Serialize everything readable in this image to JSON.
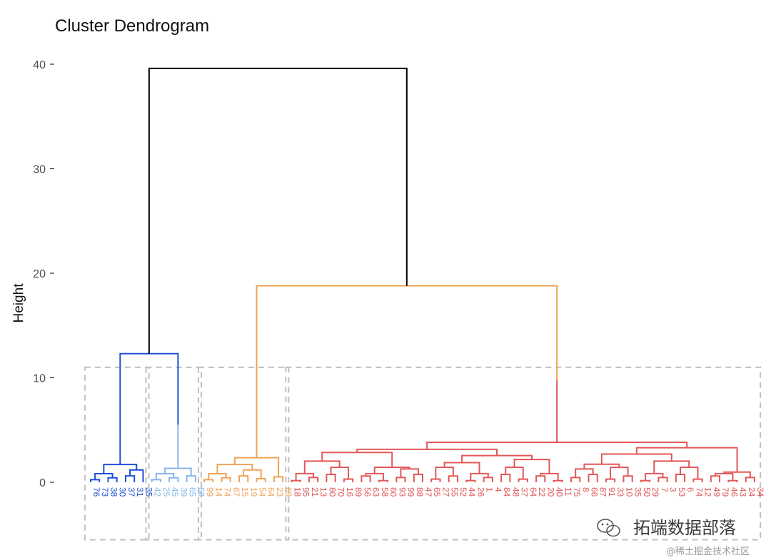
{
  "chart_data": {
    "type": "dendrogram",
    "title": "Cluster Dendrogram",
    "xlabel": "",
    "ylabel": "Height",
    "ylim": [
      -5.5,
      40
    ],
    "yticks": [
      0,
      10,
      20,
      30,
      40
    ],
    "grid": false,
    "rect_height": 11,
    "clusters": [
      {
        "id": 1,
        "color": "#1f4fd6",
        "leaves": [
          "76",
          "73",
          "38",
          "30",
          "37",
          "31",
          "35"
        ],
        "subclusters": [
          [
            0,
            1
          ],
          [
            2,
            3
          ],
          [
            4
          ],
          [
            5,
            6
          ]
        ],
        "sub_heights": [
          1.0,
          1.6,
          1.0,
          2.5
        ],
        "inner_heights": [
          2.4
        ],
        "top_height": 4.4
      },
      {
        "id": 2,
        "color": "#86b6ea",
        "leaves": [
          "42",
          "25",
          "45",
          "39",
          "65",
          "68"
        ],
        "subclusters": [
          [
            0,
            1,
            2,
            3
          ],
          [
            4,
            5
          ]
        ],
        "sub_heights": [
          1.9,
          1.3
        ],
        "top_height": 5.5
      },
      {
        "id": 3,
        "color": "#f0a357",
        "leaves": [
          "99",
          "14",
          "74",
          "67",
          "15",
          "19",
          "54",
          "64",
          "23",
          "69"
        ],
        "subclusters": [
          [
            0,
            1,
            2
          ],
          [
            3,
            4,
            5
          ],
          [
            6,
            7,
            8,
            9
          ]
        ],
        "sub_heights": [
          1.7,
          1.3,
          1.2
        ],
        "top_height": 6.2
      },
      {
        "id": 4,
        "color": "#e15857",
        "leaves": [
          "18",
          "95",
          "21",
          "13",
          "80",
          "70",
          "16",
          "89",
          "56",
          "63",
          "58",
          "60",
          "93",
          "99",
          "88",
          "47",
          "65",
          "27",
          "55",
          "52",
          "44",
          "26",
          "1",
          "4",
          "84",
          "48",
          "37",
          "64",
          "22",
          "20",
          "40",
          "11",
          "75",
          "8",
          "66",
          "87",
          "91",
          "33",
          "10",
          "35",
          "50",
          "29",
          "7",
          "3",
          "53",
          "6",
          "74",
          "12",
          "49",
          "79",
          "46",
          "43",
          "24",
          "34"
        ],
        "top_height": 9.8
      }
    ],
    "merges": [
      {
        "height": 12.3,
        "between": "clusters 1 and 2"
      },
      {
        "height": 18.8,
        "between": "cluster 3 and cluster 4"
      },
      {
        "height": 39.6,
        "between": "root"
      }
    ],
    "annotations": {
      "watermark": "拓端数据部落",
      "credit": "@稀土掘金技术社区"
    }
  }
}
